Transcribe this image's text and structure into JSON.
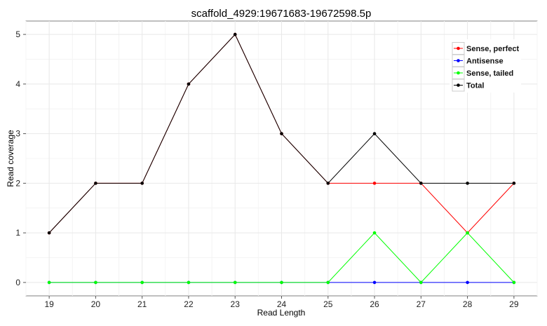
{
  "chart_data": {
    "type": "line",
    "title": "scaffold_4929:19671683-19672598.5p",
    "xlabel": "Read Length",
    "ylabel": "Read coverage",
    "x": [
      19,
      20,
      21,
      22,
      23,
      24,
      25,
      26,
      27,
      28,
      29
    ],
    "xlim": [
      18.5,
      29.5
    ],
    "ylim": [
      -0.27,
      5.27
    ],
    "yticks": [
      0,
      1,
      2,
      3,
      4,
      5
    ],
    "grid": true,
    "legend_position": "top-right",
    "series": [
      {
        "name": "Sense, perfect",
        "color": "#ff0000",
        "values": [
          1,
          2,
          2,
          4,
          5,
          3,
          2,
          2,
          2,
          1,
          2
        ]
      },
      {
        "name": "Antisense",
        "color": "#0000ff",
        "values": [
          0,
          0,
          0,
          0,
          0,
          0,
          0,
          0,
          0,
          0,
          0
        ]
      },
      {
        "name": "Sense, tailed",
        "color": "#00ff00",
        "values": [
          0,
          0,
          0,
          0,
          0,
          0,
          0,
          1,
          0,
          1,
          0
        ]
      },
      {
        "name": "Total",
        "color": "#000000",
        "values": [
          1,
          2,
          2,
          4,
          5,
          3,
          2,
          3,
          2,
          2,
          2
        ]
      }
    ]
  }
}
